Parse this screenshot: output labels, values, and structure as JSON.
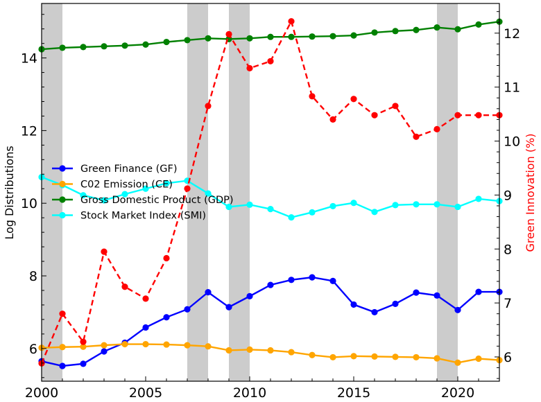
{
  "chart_data": {
    "type": "line",
    "title": "",
    "xlabel": "",
    "ylabel": "Log Distributions",
    "ylabel_right": "Green Innovation (%)",
    "xlim": [
      2000,
      2022
    ],
    "ylim": [
      5.1,
      15.5
    ],
    "ylim_right": [
      5.55,
      12.55
    ],
    "x_ticks": [
      2000,
      2005,
      2010,
      2015,
      2020
    ],
    "y_ticks": [
      6,
      8,
      10,
      12,
      14
    ],
    "y_ticks_right": [
      6,
      7,
      8,
      9,
      10,
      11,
      12
    ],
    "grid": false,
    "legend_position": "center-left",
    "shaded_periods": [
      [
        2000,
        2001
      ],
      [
        2007,
        2008
      ],
      [
        2009,
        2010
      ],
      [
        2019,
        2020
      ]
    ],
    "shaded_color": "#cccccc",
    "x": [
      2000,
      2001,
      2002,
      2003,
      2004,
      2005,
      2006,
      2007,
      2008,
      2009,
      2010,
      2011,
      2012,
      2013,
      2014,
      2015,
      2016,
      2017,
      2018,
      2019,
      2020,
      2021,
      2022
    ],
    "series": [
      {
        "name": "Green Finance (GF)",
        "color": "#0000ff",
        "axis": "left",
        "values": [
          5.65,
          5.52,
          5.58,
          5.92,
          6.16,
          6.58,
          6.86,
          7.08,
          7.55,
          7.14,
          7.44,
          7.75,
          7.89,
          7.96,
          7.86,
          7.21,
          7.0,
          7.23,
          7.54,
          7.46,
          7.06,
          7.56,
          7.56
        ]
      },
      {
        "name": "C02 Emission (CE)",
        "color": "#ffa500",
        "axis": "left",
        "values": [
          6.02,
          6.04,
          6.05,
          6.09,
          6.12,
          6.12,
          6.11,
          6.09,
          6.06,
          5.95,
          5.97,
          5.95,
          5.9,
          5.82,
          5.76,
          5.79,
          5.78,
          5.77,
          5.76,
          5.73,
          5.61,
          5.72,
          5.68
        ]
      },
      {
        "name": "Gross Domestic Product (GDP)",
        "color": "#008000",
        "axis": "left",
        "values": [
          14.24,
          14.28,
          14.3,
          14.32,
          14.34,
          14.37,
          14.44,
          14.49,
          14.54,
          14.52,
          14.54,
          14.58,
          14.58,
          14.59,
          14.6,
          14.62,
          14.7,
          14.74,
          14.77,
          14.84,
          14.79,
          14.92,
          15.0
        ]
      },
      {
        "name": "Stock Market Index (SMI)",
        "color": "#00ffff",
        "axis": "left",
        "values": [
          10.72,
          10.5,
          10.22,
          10.08,
          10.25,
          10.4,
          10.55,
          10.62,
          10.27,
          9.9,
          9.96,
          9.84,
          9.61,
          9.75,
          9.92,
          10.01,
          9.76,
          9.95,
          9.97,
          9.97,
          9.9,
          10.12,
          10.06
        ]
      },
      {
        "name": "",
        "color": "#ff0000",
        "axis": "right",
        "style": "dashed",
        "values": [
          5.88,
          6.8,
          6.28,
          7.95,
          7.3,
          7.08,
          7.83,
          9.12,
          10.65,
          11.98,
          11.35,
          11.48,
          12.22,
          10.83,
          10.4,
          10.78,
          10.48,
          10.65,
          10.08,
          10.22,
          10.48,
          10.48,
          10.48
        ]
      }
    ]
  }
}
